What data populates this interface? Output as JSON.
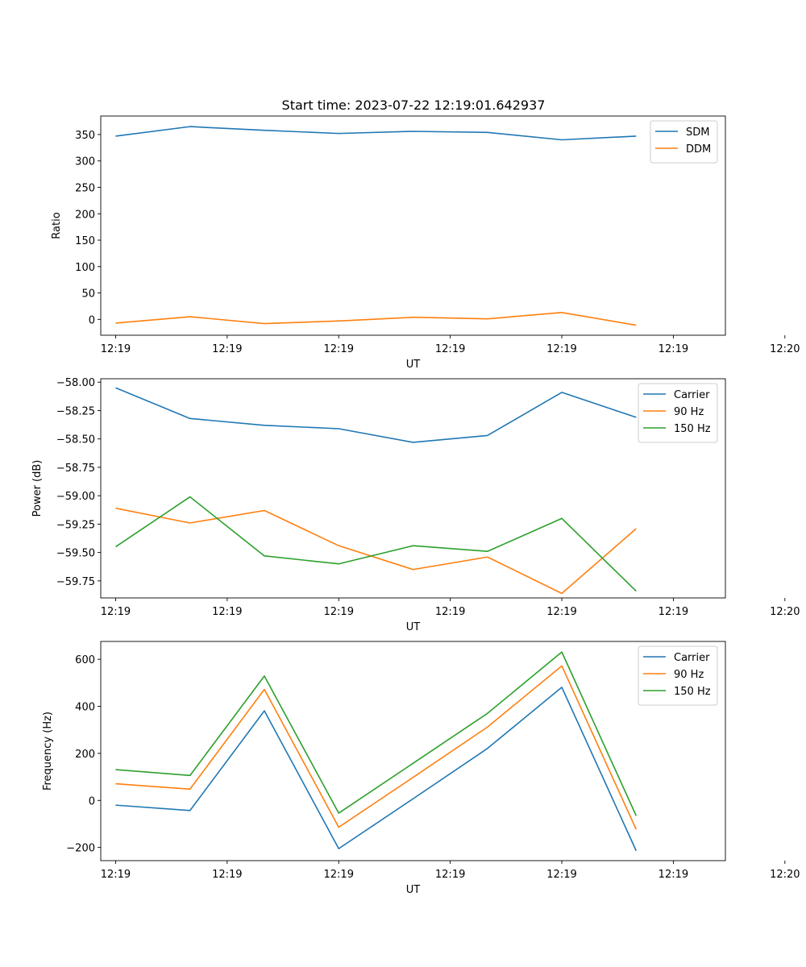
{
  "figure_title": "Start time: 2023-07-22 12:19:01.642937",
  "colors": {
    "c0": "#1f77b4",
    "c1": "#ff7f0e",
    "c2": "#2ca02c"
  },
  "chart_data": [
    {
      "type": "line",
      "title": "Start time: 2023-07-22 12:19:01.642937",
      "xlabel": "UT",
      "ylabel": "Ratio",
      "x": [
        1,
        2,
        3,
        4,
        5,
        6,
        7,
        8
      ],
      "xlim": [
        0.8,
        9.2
      ],
      "xticks": [
        1,
        2.5,
        4,
        5.5,
        7,
        8.5,
        10
      ],
      "xticklabels": [
        "12:19",
        "12:19",
        "12:19",
        "12:19",
        "12:19",
        "12:19",
        "12:20"
      ],
      "ylim": [
        -30,
        385
      ],
      "yticks": [
        0,
        50,
        100,
        150,
        200,
        250,
        300,
        350
      ],
      "yticklabels": [
        "0",
        "50",
        "100",
        "150",
        "200",
        "250",
        "300",
        "350"
      ],
      "legend_position": "top-right",
      "series": [
        {
          "name": "SDM",
          "color": "#1f77b4",
          "values": [
            347,
            365,
            358,
            352,
            356,
            354,
            340,
            347
          ]
        },
        {
          "name": "DDM",
          "color": "#ff7f0e",
          "values": [
            -7,
            5,
            -8,
            -3,
            4,
            1,
            13,
            -11
          ]
        }
      ]
    },
    {
      "type": "line",
      "title": "",
      "xlabel": "UT",
      "ylabel": "Power (dB)",
      "x": [
        1,
        2,
        3,
        4,
        5,
        6,
        7,
        8
      ],
      "xlim": [
        0.8,
        9.2
      ],
      "xticks": [
        1,
        2.5,
        4,
        5.5,
        7,
        8.5,
        10
      ],
      "xticklabels": [
        "12:19",
        "12:19",
        "12:19",
        "12:19",
        "12:19",
        "12:19",
        "12:20"
      ],
      "ylim": [
        -59.9,
        -57.97
      ],
      "yticks": [
        -58.0,
        -58.25,
        -58.5,
        -58.75,
        -59.0,
        -59.25,
        -59.5,
        -59.75
      ],
      "yticklabels": [
        "−58.00",
        "−58.25",
        "−58.50",
        "−58.75",
        "−59.00",
        "−59.25",
        "−59.50",
        "−59.75"
      ],
      "legend_position": "top-right",
      "series": [
        {
          "name": "Carrier",
          "color": "#1f77b4",
          "values": [
            -58.05,
            -58.32,
            -58.38,
            -58.41,
            -58.53,
            -58.47,
            -58.09,
            -58.31
          ]
        },
        {
          "name": "90 Hz",
          "color": "#ff7f0e",
          "values": [
            -59.11,
            -59.24,
            -59.13,
            -59.44,
            -59.65,
            -59.54,
            -59.86,
            -59.29
          ]
        },
        {
          "name": "150 Hz",
          "color": "#2ca02c",
          "values": [
            -59.45,
            -59.01,
            -59.53,
            -59.6,
            -59.44,
            -59.49,
            -59.2,
            -59.84
          ]
        }
      ]
    },
    {
      "type": "line",
      "title": "",
      "xlabel": "UT",
      "ylabel": "Frequency (Hz)",
      "x": [
        1,
        2,
        3,
        4,
        5,
        6,
        7,
        8
      ],
      "xlim": [
        0.8,
        9.2
      ],
      "xticks": [
        1,
        2.5,
        4,
        5.5,
        7,
        8.5,
        10
      ],
      "xticklabels": [
        "12:19",
        "12:19",
        "12:19",
        "12:19",
        "12:19",
        "12:19",
        "12:20"
      ],
      "ylim": [
        -256,
        676
      ],
      "yticks": [
        -200,
        0,
        200,
        400,
        600
      ],
      "yticklabels": [
        "−200",
        "0",
        "200",
        "400",
        "600"
      ],
      "legend_position": "top-right",
      "series": [
        {
          "name": "Carrier",
          "color": "#1f77b4",
          "values": [
            -20,
            -43,
            381,
            -205,
            7,
            221,
            481,
            -214
          ]
        },
        {
          "name": "90 Hz",
          "color": "#ff7f0e",
          "values": [
            71,
            48,
            472,
            -114,
            98,
            312,
            572,
            -123
          ]
        },
        {
          "name": "150 Hz",
          "color": "#2ca02c",
          "values": [
            131,
            106,
            529,
            -54,
            158,
            370,
            631,
            -65
          ]
        }
      ]
    }
  ]
}
